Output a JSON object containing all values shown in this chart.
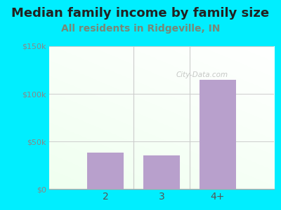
{
  "title": "Median family income by family size",
  "subtitle": "All residents in Ridgeville, IN",
  "categories": [
    "2",
    "3",
    "4+"
  ],
  "values": [
    38000,
    35000,
    115000
  ],
  "bar_color": "#b8a0cc",
  "bg_color": "#00eeff",
  "ylim": [
    0,
    150000
  ],
  "yticks": [
    0,
    50000,
    100000,
    150000
  ],
  "ytick_labels": [
    "$0",
    "$50k",
    "$100k",
    "$150k"
  ],
  "title_fontsize": 13,
  "subtitle_fontsize": 10,
  "subtitle_color": "#778877",
  "title_color": "#222222",
  "watermark": "City-Data.com",
  "plot_bg_color_top": "#f0faf0",
  "plot_bg_color_bottom": "#e0f0e0"
}
